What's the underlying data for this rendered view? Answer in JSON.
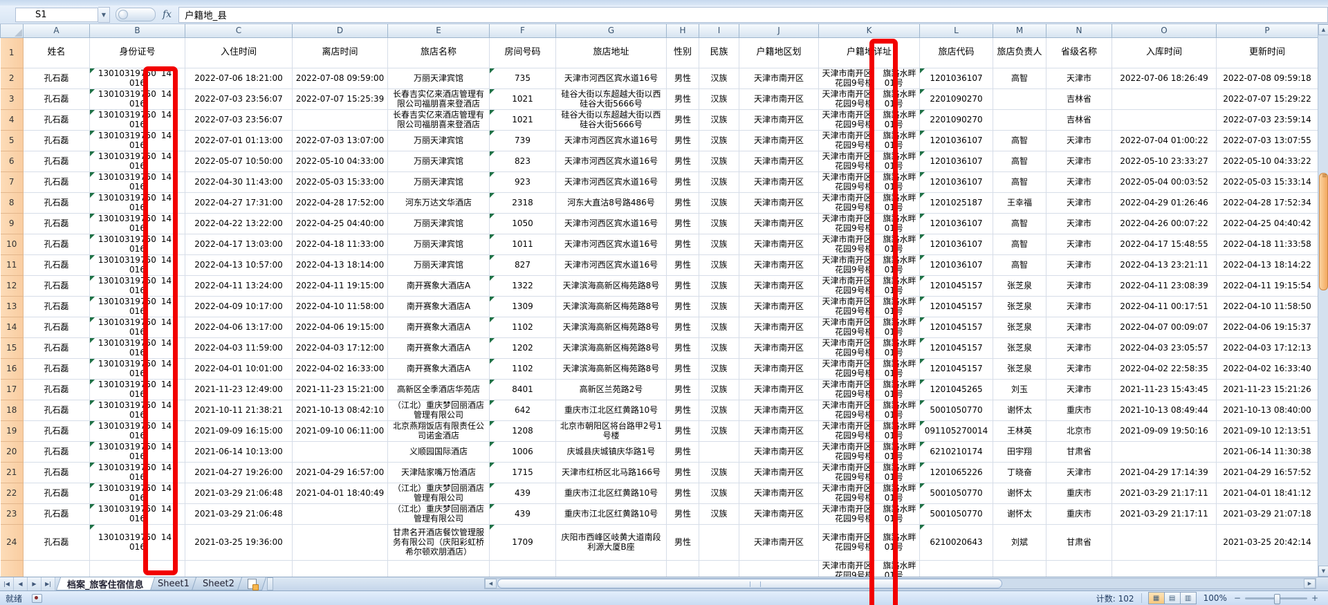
{
  "formula_bar": {
    "name_box": "S1",
    "formula": "户籍地_县",
    "fx_label": "fx"
  },
  "icons": {
    "name_dropdown": "▼",
    "corner_select_all": "select-all-triangle",
    "nav_first": "|◀",
    "nav_prev": "◀",
    "nav_next": "▶",
    "nav_last": "▶|",
    "scroll_up": "▲",
    "scroll_down": "▼",
    "scroll_left": "◀",
    "scroll_right": "▶",
    "zoom_out": "−",
    "zoom_in": "+",
    "view_normal": "▦",
    "view_layout": "▤",
    "view_break": "▥"
  },
  "annotation_color": "#f20000",
  "columns": [
    {
      "letter": "A",
      "label": "姓名"
    },
    {
      "letter": "B",
      "label": "身份证号"
    },
    {
      "letter": "C",
      "label": "入住时间"
    },
    {
      "letter": "D",
      "label": "离店时间"
    },
    {
      "letter": "E",
      "label": "旅店名称"
    },
    {
      "letter": "F",
      "label": "房间号码"
    },
    {
      "letter": "G",
      "label": "旅店地址"
    },
    {
      "letter": "H",
      "label": "性别"
    },
    {
      "letter": "I",
      "label": "民族"
    },
    {
      "letter": "J",
      "label": "户籍地区划"
    },
    {
      "letter": "K",
      "label": "户籍地详址"
    },
    {
      "letter": "L",
      "label": "旅店代码"
    },
    {
      "letter": "M",
      "label": "旅店负责人"
    },
    {
      "letter": "N",
      "label": "省级名称"
    },
    {
      "letter": "O",
      "label": "入库时间"
    },
    {
      "letter": "P",
      "label": "更新时间"
    }
  ],
  "rows": [
    {
      "n": 2,
      "name": "孔石磊",
      "id_parts": [
        "13010319750",
        "14",
        "016"
      ],
      "checkin": "2022-07-06 18:21:00",
      "checkout": "2022-07-08 09:59:00",
      "hotel": "万丽天津宾馆",
      "room": "735",
      "addr": "天津市河西区宾水道16号",
      "gender": "男性",
      "ethnic": "汉族",
      "region": "天津市南开区",
      "haddr1": [
        "天津市南开区",
        "旗路水畔"
      ],
      "haddr2": [
        "花园9号楼",
        "01号"
      ],
      "code": "1201036107",
      "manager": "高智",
      "province": "天津市",
      "stored": "2022-07-06 18:26:49",
      "updated": "2022-07-08 09:59:18"
    },
    {
      "n": 3,
      "name": "孔石磊",
      "id_parts": [
        "13010319750",
        "14",
        "016"
      ],
      "checkin": "2022-07-03 23:56:07",
      "checkout": "2022-07-07 15:25:39",
      "hotel": "长春吉实亿来酒店管理有限公司福朋喜来登酒店",
      "room": "1021",
      "addr": "硅谷大街以东超越大街以西硅谷大街5666号",
      "gender": "男性",
      "ethnic": "汉族",
      "region": "天津市南开区",
      "haddr1": [
        "天津市南开区",
        "旗路水畔"
      ],
      "haddr2": [
        "花园9号楼",
        "01号"
      ],
      "code": "2201090270",
      "manager": "",
      "province": "吉林省",
      "stored": "",
      "updated": "2022-07-07 15:29:22"
    },
    {
      "n": 4,
      "name": "孔石磊",
      "id_parts": [
        "13010319750",
        "14",
        "016"
      ],
      "checkin": "2022-07-03 23:56:07",
      "checkout": "",
      "hotel": "长春吉实亿来酒店管理有限公司福朋喜来登酒店",
      "room": "1021",
      "addr": "硅谷大街以东超越大街以西硅谷大街5666号",
      "gender": "男性",
      "ethnic": "汉族",
      "region": "天津市南开区",
      "haddr1": [
        "天津市南开区",
        "旗路水畔"
      ],
      "haddr2": [
        "花园9号楼",
        "01号"
      ],
      "code": "2201090270",
      "manager": "",
      "province": "吉林省",
      "stored": "",
      "updated": "2022-07-03 23:59:14"
    },
    {
      "n": 5,
      "name": "孔石磊",
      "id_parts": [
        "13010319750",
        "14",
        "016"
      ],
      "checkin": "2022-07-01 01:13:00",
      "checkout": "2022-07-03 13:07:00",
      "hotel": "万丽天津宾馆",
      "room": "739",
      "addr": "天津市河西区宾水道16号",
      "gender": "男性",
      "ethnic": "汉族",
      "region": "天津市南开区",
      "haddr1": [
        "天津市南开区",
        "旗路水畔"
      ],
      "haddr2": [
        "花园9号楼",
        "01号"
      ],
      "code": "1201036107",
      "manager": "高智",
      "province": "天津市",
      "stored": "2022-07-04 01:00:22",
      "updated": "2022-07-03 13:07:55"
    },
    {
      "n": 6,
      "name": "孔石磊",
      "id_parts": [
        "13010319750",
        "14",
        "016"
      ],
      "checkin": "2022-05-07 10:50:00",
      "checkout": "2022-05-10 04:33:00",
      "hotel": "万丽天津宾馆",
      "room": "823",
      "addr": "天津市河西区宾水道16号",
      "gender": "男性",
      "ethnic": "汉族",
      "region": "天津市南开区",
      "haddr1": [
        "天津市南开区",
        "旗路水畔"
      ],
      "haddr2": [
        "花园9号楼",
        "01号"
      ],
      "code": "1201036107",
      "manager": "高智",
      "province": "天津市",
      "stored": "2022-05-10 23:33:27",
      "updated": "2022-05-10 04:33:22"
    },
    {
      "n": 7,
      "name": "孔石磊",
      "id_parts": [
        "13010319750",
        "14",
        "016"
      ],
      "checkin": "2022-04-30 11:43:00",
      "checkout": "2022-05-03 15:33:00",
      "hotel": "万丽天津宾馆",
      "room": "923",
      "addr": "天津市河西区宾水道16号",
      "gender": "男性",
      "ethnic": "汉族",
      "region": "天津市南开区",
      "haddr1": [
        "天津市南开区",
        "旗路水畔"
      ],
      "haddr2": [
        "花园9号楼",
        "01号"
      ],
      "code": "1201036107",
      "manager": "高智",
      "province": "天津市",
      "stored": "2022-05-04 00:03:52",
      "updated": "2022-05-03 15:33:14"
    },
    {
      "n": 8,
      "name": "孔石磊",
      "id_parts": [
        "13010319750",
        "14",
        "016"
      ],
      "checkin": "2022-04-27 17:31:00",
      "checkout": "2022-04-28 17:52:00",
      "hotel": "河东万达文华酒店",
      "room": "2318",
      "addr": "河东大直沽8号路486号",
      "gender": "男性",
      "ethnic": "汉族",
      "region": "天津市南开区",
      "haddr1": [
        "天津市南开区",
        "旗路水畔"
      ],
      "haddr2": [
        "花园9号楼",
        "01号"
      ],
      "code": "1201025187",
      "manager": "王幸福",
      "province": "天津市",
      "stored": "2022-04-29 01:26:46",
      "updated": "2022-04-28 17:52:34"
    },
    {
      "n": 9,
      "name": "孔石磊",
      "id_parts": [
        "13010319750",
        "14",
        "016"
      ],
      "checkin": "2022-04-22 13:22:00",
      "checkout": "2022-04-25 04:40:00",
      "hotel": "万丽天津宾馆",
      "room": "1050",
      "addr": "天津市河西区宾水道16号",
      "gender": "男性",
      "ethnic": "汉族",
      "region": "天津市南开区",
      "haddr1": [
        "天津市南开区",
        "旗路水畔"
      ],
      "haddr2": [
        "花园9号楼",
        "01号"
      ],
      "code": "1201036107",
      "manager": "高智",
      "province": "天津市",
      "stored": "2022-04-26 00:07:22",
      "updated": "2022-04-25 04:40:42"
    },
    {
      "n": 10,
      "name": "孔石磊",
      "id_parts": [
        "13010319750",
        "14",
        "016"
      ],
      "checkin": "2022-04-17 13:03:00",
      "checkout": "2022-04-18 11:33:00",
      "hotel": "万丽天津宾馆",
      "room": "1011",
      "addr": "天津市河西区宾水道16号",
      "gender": "男性",
      "ethnic": "汉族",
      "region": "天津市南开区",
      "haddr1": [
        "天津市南开区",
        "旗路水畔"
      ],
      "haddr2": [
        "花园9号楼",
        "01号"
      ],
      "code": "1201036107",
      "manager": "高智",
      "province": "天津市",
      "stored": "2022-04-17 15:48:55",
      "updated": "2022-04-18 11:33:58"
    },
    {
      "n": 11,
      "name": "孔石磊",
      "id_parts": [
        "13010319750",
        "14",
        "016"
      ],
      "checkin": "2022-04-13 10:57:00",
      "checkout": "2022-04-13 18:14:00",
      "hotel": "万丽天津宾馆",
      "room": "827",
      "addr": "天津市河西区宾水道16号",
      "gender": "男性",
      "ethnic": "汉族",
      "region": "天津市南开区",
      "haddr1": [
        "天津市南开区",
        "旗路水畔"
      ],
      "haddr2": [
        "花园9号楼",
        "01号"
      ],
      "code": "1201036107",
      "manager": "高智",
      "province": "天津市",
      "stored": "2022-04-13 23:21:11",
      "updated": "2022-04-13 18:14:22"
    },
    {
      "n": 12,
      "name": "孔石磊",
      "id_parts": [
        "13010319750",
        "14",
        "016"
      ],
      "checkin": "2022-04-11 13:24:00",
      "checkout": "2022-04-11 19:15:00",
      "hotel": "南开赛象大酒店A",
      "room": "1322",
      "addr": "天津滨海高新区梅苑路8号",
      "gender": "男性",
      "ethnic": "汉族",
      "region": "天津市南开区",
      "haddr1": [
        "天津市南开区",
        "旗路水畔"
      ],
      "haddr2": [
        "花园9号楼",
        "01号"
      ],
      "code": "1201045157",
      "manager": "张芝泉",
      "province": "天津市",
      "stored": "2022-04-11 23:08:39",
      "updated": "2022-04-11 19:15:54"
    },
    {
      "n": 13,
      "name": "孔石磊",
      "id_parts": [
        "13010319750",
        "14",
        "016"
      ],
      "checkin": "2022-04-09 10:17:00",
      "checkout": "2022-04-10 11:58:00",
      "hotel": "南开赛象大酒店A",
      "room": "1309",
      "addr": "天津滨海高新区梅苑路8号",
      "gender": "男性",
      "ethnic": "汉族",
      "region": "天津市南开区",
      "haddr1": [
        "天津市南开区",
        "旗路水畔"
      ],
      "haddr2": [
        "花园9号楼",
        "01号"
      ],
      "code": "1201045157",
      "manager": "张芝泉",
      "province": "天津市",
      "stored": "2022-04-11 00:17:51",
      "updated": "2022-04-10 11:58:50"
    },
    {
      "n": 14,
      "name": "孔石磊",
      "id_parts": [
        "13010319750",
        "14",
        "016"
      ],
      "checkin": "2022-04-06 13:17:00",
      "checkout": "2022-04-06 19:15:00",
      "hotel": "南开赛象大酒店A",
      "room": "1102",
      "addr": "天津滨海高新区梅苑路8号",
      "gender": "男性",
      "ethnic": "汉族",
      "region": "天津市南开区",
      "haddr1": [
        "天津市南开区",
        "旗路水畔"
      ],
      "haddr2": [
        "花园9号楼",
        "01号"
      ],
      "code": "1201045157",
      "manager": "张芝泉",
      "province": "天津市",
      "stored": "2022-04-07 00:09:07",
      "updated": "2022-04-06 19:15:37"
    },
    {
      "n": 15,
      "name": "孔石磊",
      "id_parts": [
        "13010319750",
        "14",
        "016"
      ],
      "checkin": "2022-04-03 11:59:00",
      "checkout": "2022-04-03 17:12:00",
      "hotel": "南开赛象大酒店A",
      "room": "1202",
      "addr": "天津滨海高新区梅苑路8号",
      "gender": "男性",
      "ethnic": "汉族",
      "region": "天津市南开区",
      "haddr1": [
        "天津市南开区",
        "旗路水畔"
      ],
      "haddr2": [
        "花园9号楼",
        "01号"
      ],
      "code": "1201045157",
      "manager": "张芝泉",
      "province": "天津市",
      "stored": "2022-04-03 23:05:57",
      "updated": "2022-04-03 17:12:13"
    },
    {
      "n": 16,
      "name": "孔石磊",
      "id_parts": [
        "13010319750",
        "14",
        "016"
      ],
      "checkin": "2022-04-01 10:01:00",
      "checkout": "2022-04-02 16:33:00",
      "hotel": "南开赛象大酒店A",
      "room": "1102",
      "addr": "天津滨海高新区梅苑路8号",
      "gender": "男性",
      "ethnic": "汉族",
      "region": "天津市南开区",
      "haddr1": [
        "天津市南开区",
        "旗路水畔"
      ],
      "haddr2": [
        "花园9号楼",
        "01号"
      ],
      "code": "1201045157",
      "manager": "张芝泉",
      "province": "天津市",
      "stored": "2022-04-02 22:58:35",
      "updated": "2022-04-02 16:33:40"
    },
    {
      "n": 17,
      "name": "孔石磊",
      "id_parts": [
        "13010319750",
        "14",
        "016"
      ],
      "checkin": "2021-11-23 12:49:00",
      "checkout": "2021-11-23 15:21:00",
      "hotel": "高新区全季酒店华苑店",
      "room": "8401",
      "addr": "高新区兰苑路2号",
      "gender": "男性",
      "ethnic": "汉族",
      "region": "天津市南开区",
      "haddr1": [
        "天津市南开区",
        "旗路水畔"
      ],
      "haddr2": [
        "花园9号楼",
        "01号"
      ],
      "code": "1201045265",
      "manager": "刘玉",
      "province": "天津市",
      "stored": "2021-11-23 15:43:45",
      "updated": "2021-11-23 15:21:26"
    },
    {
      "n": 18,
      "name": "孔石磊",
      "id_parts": [
        "13010319750",
        "14",
        "016"
      ],
      "checkin": "2021-10-11 21:38:21",
      "checkout": "2021-10-13 08:42:10",
      "hotel": "（江北）重庆梦回丽酒店管理有限公司",
      "room": "642",
      "addr": "重庆市江北区红黄路10号",
      "gender": "男性",
      "ethnic": "汉族",
      "region": "天津市南开区",
      "haddr1": [
        "天津市南开区",
        "旗路水畔"
      ],
      "haddr2": [
        "花园9号楼",
        "01号"
      ],
      "code": "5001050770",
      "manager": "谢怀太",
      "province": "重庆市",
      "stored": "2021-10-13 08:49:44",
      "updated": "2021-10-13 08:40:00"
    },
    {
      "n": 19,
      "name": "孔石磊",
      "id_parts": [
        "13010319750",
        "14",
        "016"
      ],
      "checkin": "2021-09-09 16:15:00",
      "checkout": "2021-09-10 06:11:00",
      "hotel": "北京燕翔饭店有限责任公司诺金酒店",
      "room": "1208",
      "addr": "北京市朝阳区将台路甲2号1号楼",
      "gender": "男性",
      "ethnic": "汉族",
      "region": "天津市南开区",
      "haddr1": [
        "天津市南开区",
        "旗路水畔"
      ],
      "haddr2": [
        "花园9号楼",
        "01号"
      ],
      "code": "091105270014",
      "manager": "王林英",
      "province": "北京市",
      "stored": "2021-09-09 19:50:16",
      "updated": "2021-09-10 12:13:51"
    },
    {
      "n": 20,
      "name": "孔石磊",
      "id_parts": [
        "13010319750",
        "14",
        "016"
      ],
      "checkin": "2021-06-14 10:13:00",
      "checkout": "",
      "hotel": "义顺园国际酒店",
      "room": "1006",
      "addr": "庆城县庆城镇庆华路1号",
      "gender": "男性",
      "ethnic": "",
      "region": "天津市南开区",
      "haddr1": [
        "天津市南开区",
        "旗路水畔"
      ],
      "haddr2": [
        "花园9号楼",
        "01号"
      ],
      "code": "6210210174",
      "manager": "田宇翔",
      "province": "甘肃省",
      "stored": "",
      "updated": "2021-06-14 11:30:38"
    },
    {
      "n": 21,
      "name": "孔石磊",
      "id_parts": [
        "13010319750",
        "14",
        "016"
      ],
      "checkin": "2021-04-27 19:26:00",
      "checkout": "2021-04-29 16:57:00",
      "hotel": "天津陆家嘴万怡酒店",
      "room": "1715",
      "addr": "天津市红桥区北马路166号",
      "gender": "男性",
      "ethnic": "汉族",
      "region": "天津市南开区",
      "haddr1": [
        "天津市南开区",
        "旗路水畔"
      ],
      "haddr2": [
        "花园9号楼",
        "01号"
      ],
      "code": "1201065226",
      "manager": "丁晓奋",
      "province": "天津市",
      "stored": "2021-04-29 17:14:39",
      "updated": "2021-04-29 16:57:52"
    },
    {
      "n": 22,
      "name": "孔石磊",
      "id_parts": [
        "13010319750",
        "14",
        "016"
      ],
      "checkin": "2021-03-29 21:06:48",
      "checkout": "2021-04-01 18:40:49",
      "hotel": "（江北）重庆梦回丽酒店管理有限公司",
      "room": "439",
      "addr": "重庆市江北区红黄路10号",
      "gender": "男性",
      "ethnic": "汉族",
      "region": "天津市南开区",
      "haddr1": [
        "天津市南开区",
        "旗路水畔"
      ],
      "haddr2": [
        "花园9号楼",
        "01号"
      ],
      "code": "5001050770",
      "manager": "谢怀太",
      "province": "重庆市",
      "stored": "2021-03-29 21:17:11",
      "updated": "2021-04-01 18:41:12"
    },
    {
      "n": 23,
      "name": "孔石磊",
      "id_parts": [
        "13010319750",
        "14",
        "016"
      ],
      "checkin": "2021-03-29 21:06:48",
      "checkout": "",
      "hotel": "（江北）重庆梦回丽酒店管理有限公司",
      "room": "439",
      "addr": "重庆市江北区红黄路10号",
      "gender": "男性",
      "ethnic": "汉族",
      "region": "天津市南开区",
      "haddr1": [
        "天津市南开区",
        "旗路水畔"
      ],
      "haddr2": [
        "花园9号楼",
        "01号"
      ],
      "code": "5001050770",
      "manager": "谢怀太",
      "province": "重庆市",
      "stored": "2021-03-29 21:17:11",
      "updated": "2021-03-29 21:07:18"
    },
    {
      "n": 24,
      "tall": true,
      "name": "孔石磊",
      "id_parts": [
        "13010319750",
        "14",
        "016"
      ],
      "checkin": "2021-03-25 19:36:00",
      "checkout": "",
      "hotel": "甘肃名开酒店餐饮管理服务有限公司（庆阳彩虹桥希尔顿欢朋酒店）",
      "room": "1709",
      "addr": "庆阳市西峰区岐黄大道南段利源大厦B座",
      "gender": "男性",
      "ethnic": "",
      "region": "天津市南开区",
      "haddr1": [
        "天津市南开区",
        "旗路水畔"
      ],
      "haddr2": [
        "花园9号楼",
        "01号"
      ],
      "code": "6210020643",
      "manager": "刘斌",
      "province": "甘肃省",
      "stored": "",
      "updated": "2021-03-25 20:42:14"
    }
  ],
  "partial_row": {
    "haddr1": [
      "天津市南开区",
      "旗路水畔"
    ],
    "haddr2": [
      "花园9号楼",
      "01号"
    ]
  },
  "sheet_tabs": {
    "tabs": [
      {
        "label": "档案_旅客住宿信息",
        "active": true
      },
      {
        "label": "Sheet1",
        "active": false
      },
      {
        "label": "Sheet2",
        "active": false
      }
    ]
  },
  "status_bar": {
    "ready": "就绪",
    "count": "计数: 102",
    "zoom_level": "100%"
  }
}
